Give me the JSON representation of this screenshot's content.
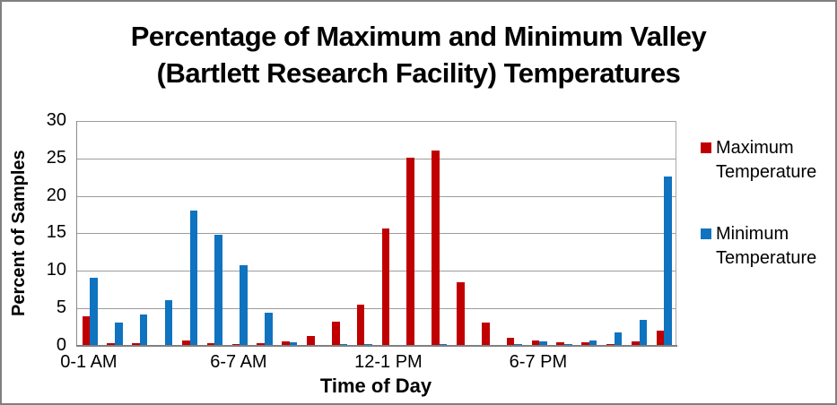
{
  "window": {
    "background": "#FFFFFF",
    "border_color": "#808080"
  },
  "chart_data": {
    "type": "bar",
    "title": "Percentage of Maximum and Minimum Valley (Bartlett Research Facility) Temperatures",
    "title_lines": [
      "Percentage of Maximum and Minimum Valley",
      "(Bartlett Research Facility) Temperatures"
    ],
    "xlabel": "Time of Day",
    "ylabel": "Percent of Samples",
    "ylim": [
      0,
      30
    ],
    "yticks": [
      0,
      5,
      10,
      15,
      20,
      25,
      30
    ],
    "grid": true,
    "num_categories": 24,
    "x_tick_labels": [
      {
        "index": 0,
        "label": "0-1 AM"
      },
      {
        "index": 6,
        "label": "6-7 AM"
      },
      {
        "index": 12,
        "label": "12-1 PM"
      },
      {
        "index": 18,
        "label": "6-7 PM"
      }
    ],
    "series": [
      {
        "name": "Maximum Temperature",
        "color": "#C00000",
        "values": [
          3.9,
          0.3,
          0.3,
          0,
          0.7,
          0.3,
          0.2,
          0.3,
          0.5,
          1.2,
          3.2,
          5.4,
          15.6,
          25.1,
          26,
          8.4,
          3,
          1,
          0.6,
          0.45,
          0.4,
          0.2,
          0.5,
          2
        ]
      },
      {
        "name": "Minimum Temperature",
        "color": "#0F73C0",
        "values": [
          9.1,
          3,
          4.1,
          6,
          18,
          14.8,
          10.7,
          4.4,
          0.4,
          0,
          0.15,
          0.2,
          0,
          0,
          0.15,
          0,
          0,
          0.15,
          0.5,
          0.15,
          0.6,
          1.7,
          3.4,
          22.6
        ]
      }
    ],
    "legend_position": "right"
  },
  "legend": {
    "items": [
      {
        "label": "Maximum Temperature",
        "color": "#C00000"
      },
      {
        "label": "Minimum Temperature",
        "color": "#0F73C0"
      }
    ]
  }
}
